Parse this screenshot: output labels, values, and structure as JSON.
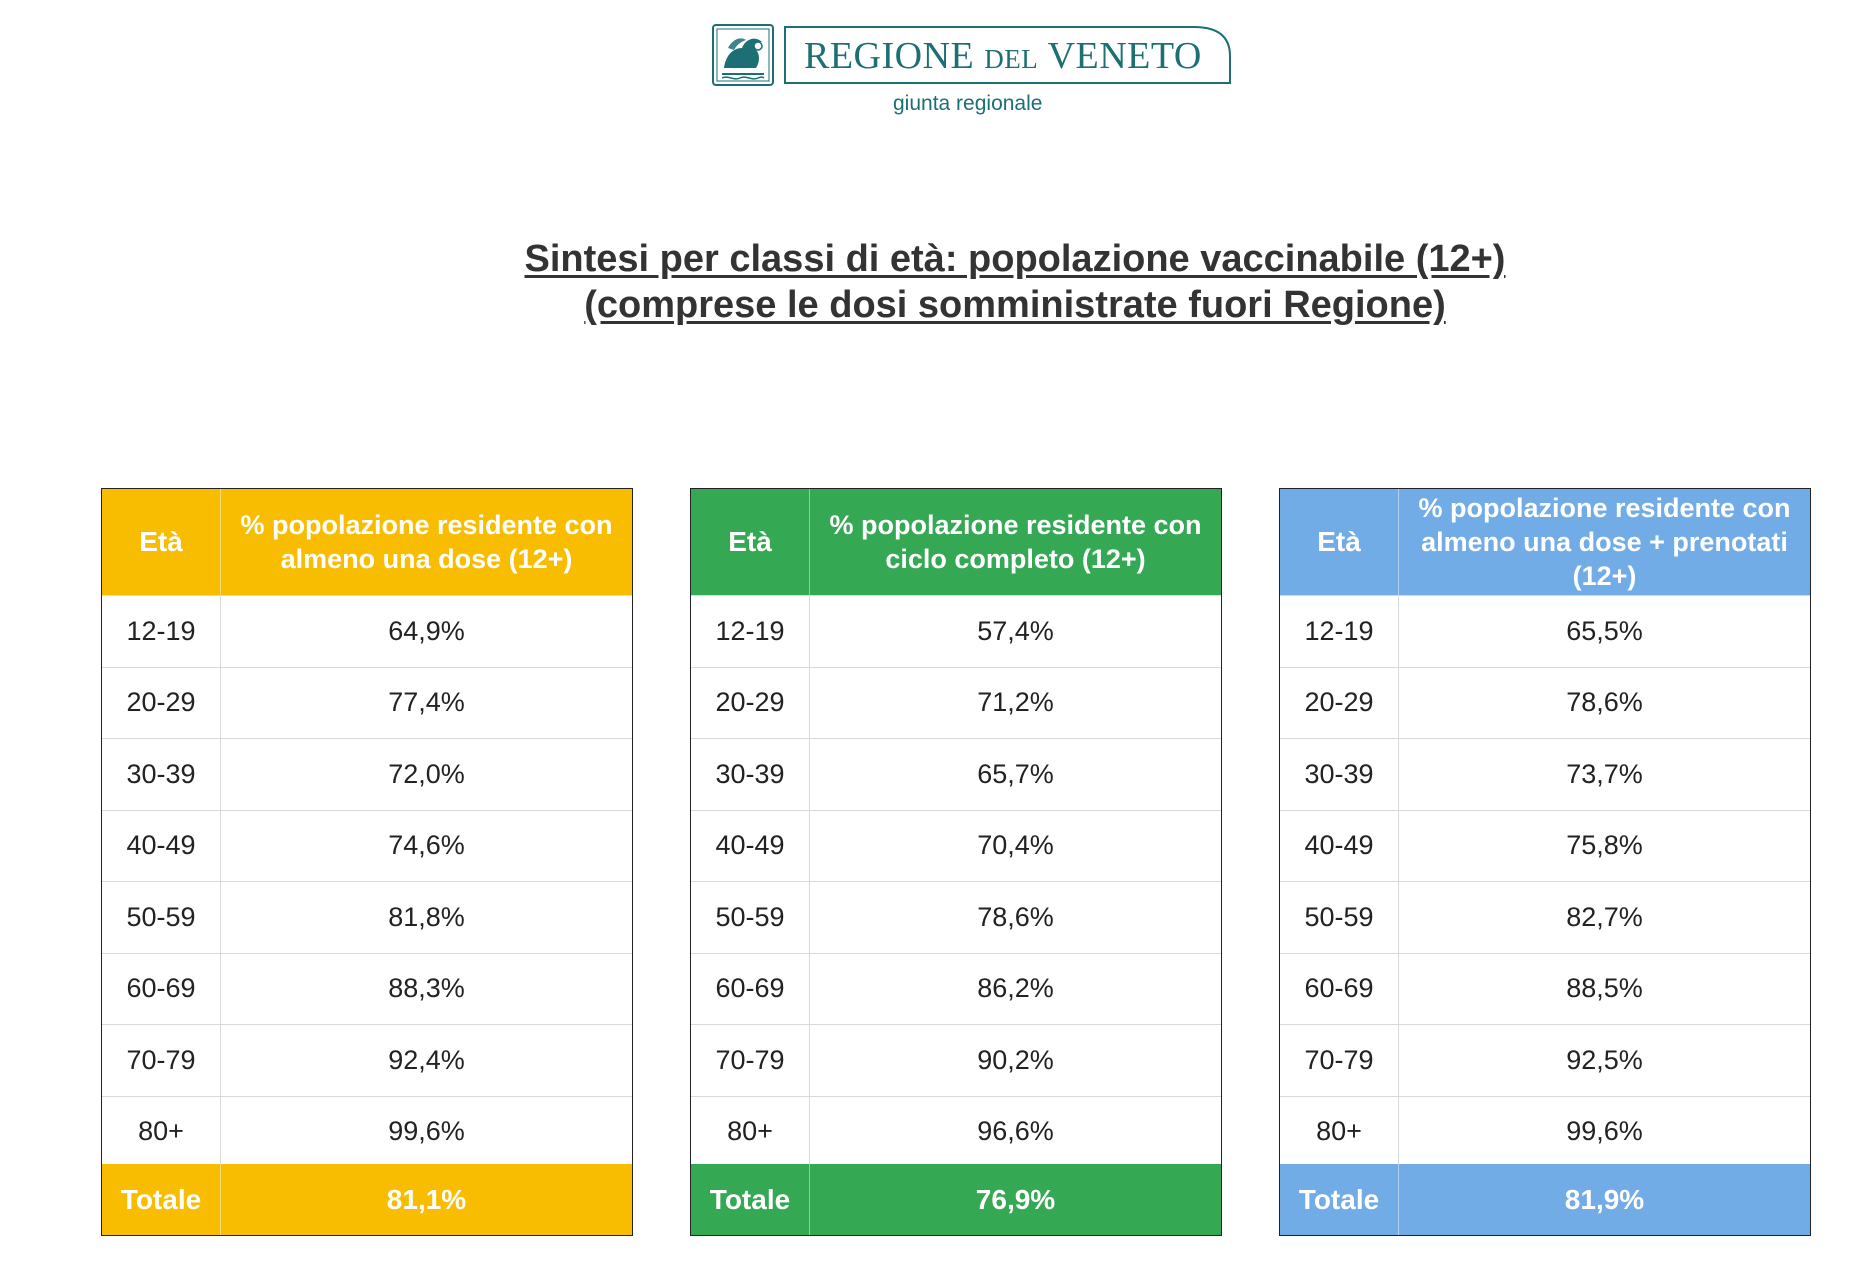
{
  "header": {
    "logo_name_part1": "REGIONE ",
    "logo_name_part2": "DEL",
    "logo_name_part3": " VENETO",
    "logo_sub": "giunta regionale",
    "emblem_icon": "lion-of-saint-mark-icon",
    "brand_color": "#1c6f74"
  },
  "title": {
    "line1": "Sintesi per classi di età: popolazione vaccinabile (12+)",
    "line2": "(comprese le dosi somministrate fuori Regione)"
  },
  "tables": [
    {
      "color": "#f8bd00",
      "age_header": "Età",
      "value_header": "% popolazione residente con almeno una dose (12+)",
      "rows": [
        {
          "age": "12-19",
          "value": "64,9%"
        },
        {
          "age": "20-29",
          "value": "77,4%"
        },
        {
          "age": "30-39",
          "value": "72,0%"
        },
        {
          "age": "40-49",
          "value": "74,6%"
        },
        {
          "age": "50-59",
          "value": "81,8%"
        },
        {
          "age": "60-69",
          "value": "88,3%"
        },
        {
          "age": "70-79",
          "value": "92,4%"
        },
        {
          "age": "80+",
          "value": "99,6%"
        }
      ],
      "total_label": "Totale",
      "total_value": "81,1%"
    },
    {
      "color": "#34a853",
      "age_header": "Età",
      "value_header": "% popolazione residente con ciclo completo (12+)",
      "rows": [
        {
          "age": "12-19",
          "value": "57,4%"
        },
        {
          "age": "20-29",
          "value": "71,2%"
        },
        {
          "age": "30-39",
          "value": "65,7%"
        },
        {
          "age": "40-49",
          "value": "70,4%"
        },
        {
          "age": "50-59",
          "value": "78,6%"
        },
        {
          "age": "60-69",
          "value": "86,2%"
        },
        {
          "age": "70-79",
          "value": "90,2%"
        },
        {
          "age": "80+",
          "value": "96,6%"
        }
      ],
      "total_label": "Totale",
      "total_value": "76,9%"
    },
    {
      "color": "#72ace6",
      "age_header": "Età",
      "value_header": "% popolazione residente con almeno una dose + prenotati (12+)",
      "rows": [
        {
          "age": "12-19",
          "value": "65,5%"
        },
        {
          "age": "20-29",
          "value": "78,6%"
        },
        {
          "age": "30-39",
          "value": "73,7%"
        },
        {
          "age": "40-49",
          "value": "75,8%"
        },
        {
          "age": "50-59",
          "value": "82,7%"
        },
        {
          "age": "60-69",
          "value": "88,5%"
        },
        {
          "age": "70-79",
          "value": "92,5%"
        },
        {
          "age": "80+",
          "value": "99,6%"
        }
      ],
      "total_label": "Totale",
      "total_value": "81,9%"
    }
  ]
}
